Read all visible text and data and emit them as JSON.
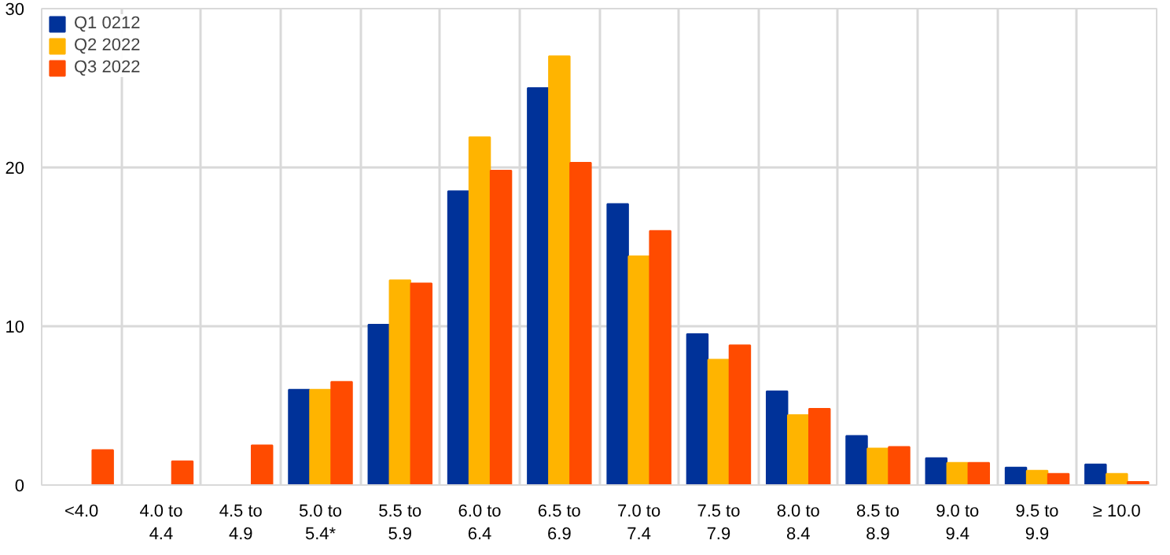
{
  "chart_data": {
    "type": "bar",
    "categories": [
      "<4.0",
      "4.0 to\n4.4",
      "4.5 to\n4.9",
      "5.0 to\n5.4*",
      "5.5 to\n5.9",
      "6.0 to\n6.4",
      "6.5 to\n6.9",
      "7.0 to\n7.4",
      "7.5 to\n7.9",
      "8.0 to\n8.4",
      "8.5 to\n8.9",
      "9.0 to\n9.4",
      "9.5 to\n9.9",
      "≥ 10.0"
    ],
    "series": [
      {
        "name": "Q1 0212",
        "color": "#003299",
        "values": [
          null,
          null,
          null,
          6.0,
          10.1,
          18.5,
          25.0,
          17.7,
          9.5,
          5.9,
          3.1,
          1.7,
          1.1,
          1.3
        ]
      },
      {
        "name": "Q2 2022",
        "color": "#ffb400",
        "values": [
          null,
          null,
          null,
          6.0,
          12.9,
          21.9,
          27.0,
          14.4,
          7.9,
          4.4,
          2.3,
          1.4,
          0.9,
          0.7
        ]
      },
      {
        "name": "Q3 2022",
        "color": "#ff4b00",
        "values": [
          2.2,
          1.5,
          2.5,
          6.5,
          12.7,
          19.8,
          20.3,
          16.0,
          8.8,
          4.8,
          2.4,
          1.4,
          0.7,
          0.2
        ]
      }
    ],
    "ylim": [
      0,
      30
    ],
    "yticks": [
      0,
      10,
      20,
      30
    ],
    "grid": true,
    "legend": "top left"
  }
}
